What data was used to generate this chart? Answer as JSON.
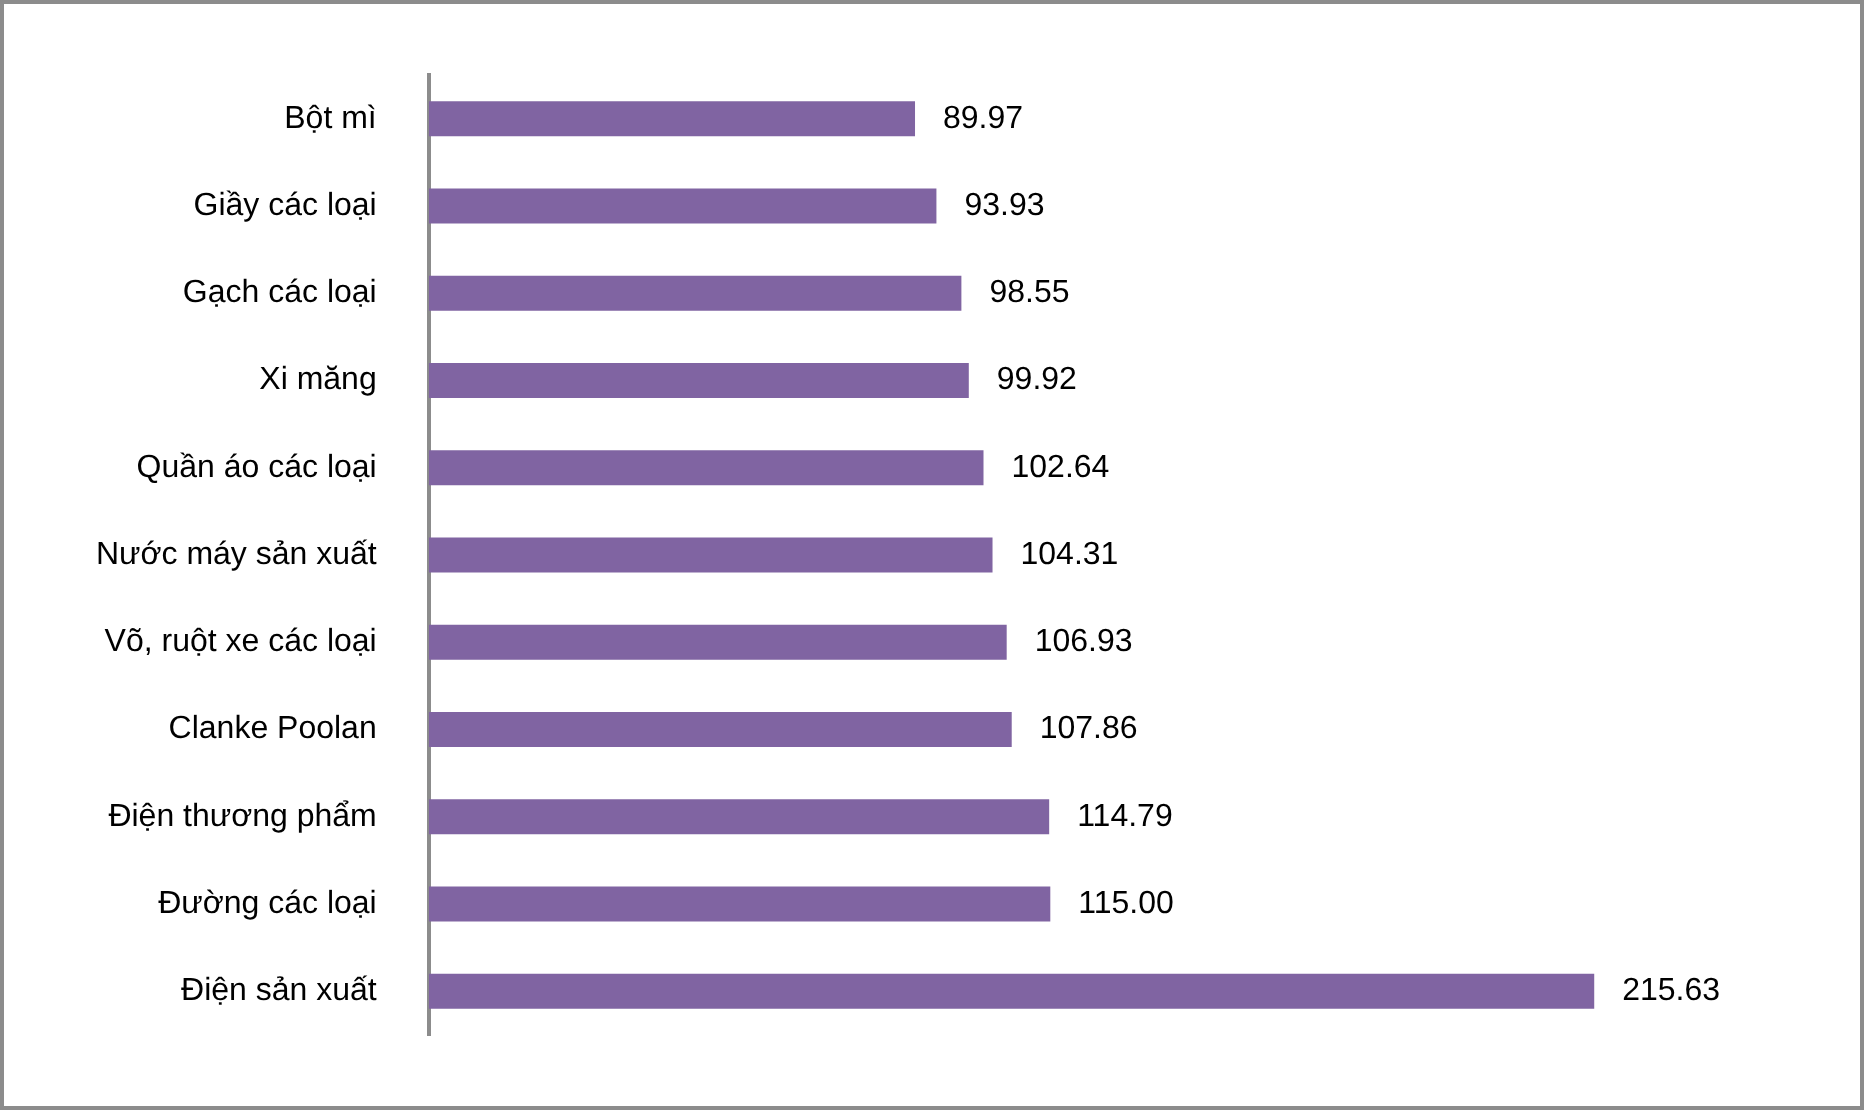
{
  "chart_data": {
    "type": "bar",
    "orientation": "horizontal",
    "categories": [
      "Bột mì",
      "Giầy các loại",
      "Gạch các loại",
      "Xi măng",
      "Quần áo các loại",
      "Nước máy sản xuất",
      "Võ, ruột xe các loại",
      "Clanke Poolan",
      "Điện thương phẩm",
      "Đường các loại",
      "Điện sản xuất"
    ],
    "values": [
      89.97,
      93.93,
      98.55,
      99.92,
      102.64,
      104.31,
      106.93,
      107.86,
      114.79,
      115.0,
      215.63
    ],
    "value_labels": [
      "89.97",
      "93.93",
      "98.55",
      "99.92",
      "102.64",
      "104.31",
      "106.93",
      "107.86",
      "114.79",
      "115.00",
      "215.63"
    ],
    "color": "#8064a2",
    "tick_labels": "y"
  }
}
